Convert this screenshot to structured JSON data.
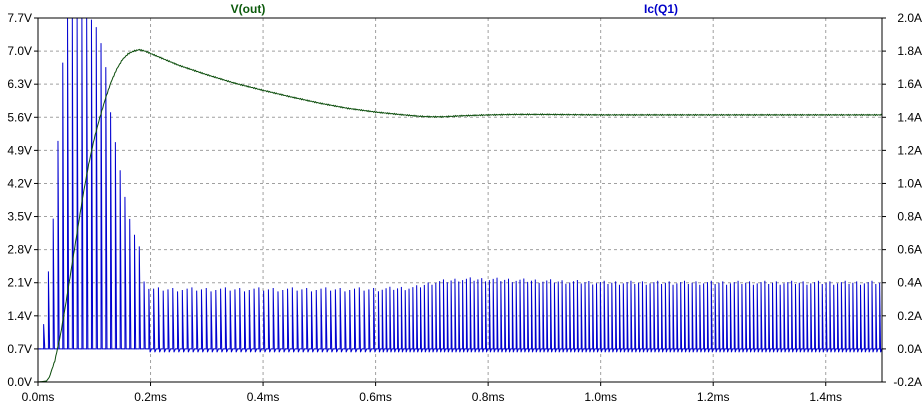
{
  "chart_data": {
    "type": "line",
    "series": [
      {
        "name": "V(out)",
        "axis": "left",
        "color": "#0b4d0b",
        "x": [
          0.0,
          0.015,
          0.02,
          0.03,
          0.04,
          0.05,
          0.06,
          0.07,
          0.08,
          0.09,
          0.1,
          0.11,
          0.12,
          0.13,
          0.14,
          0.15,
          0.16,
          0.17,
          0.18,
          0.19,
          0.2,
          0.22,
          0.25,
          0.3,
          0.35,
          0.4,
          0.45,
          0.5,
          0.55,
          0.6,
          0.65,
          0.68,
          0.7,
          0.72,
          0.75,
          0.8,
          0.85,
          0.9,
          1.0,
          1.1,
          1.2,
          1.3,
          1.4,
          1.5
        ],
        "y": [
          0.0,
          0.02,
          0.1,
          0.45,
          1.0,
          1.7,
          2.45,
          3.2,
          3.95,
          4.6,
          5.15,
          5.6,
          6.0,
          6.35,
          6.62,
          6.82,
          6.94,
          7.0,
          7.03,
          7.0,
          6.95,
          6.85,
          6.7,
          6.5,
          6.32,
          6.17,
          6.03,
          5.9,
          5.79,
          5.71,
          5.65,
          5.62,
          5.61,
          5.61,
          5.63,
          5.65,
          5.66,
          5.66,
          5.65,
          5.65,
          5.65,
          5.65,
          5.65,
          5.65
        ]
      },
      {
        "name": "Ic(Q1)",
        "axis": "right",
        "color": "#0000d0",
        "waveform": "switching pulses",
        "baseline": 0.0,
        "trough_level": -0.02,
        "start_time": 0.01,
        "peak_envelope": {
          "x": [
            0.01,
            0.03,
            0.04,
            0.05,
            0.07,
            0.08,
            0.09,
            0.1,
            0.11,
            0.12,
            0.125,
            0.13,
            0.14,
            0.15,
            0.16,
            0.175,
            0.18,
            0.19,
            0.2,
            0.3,
            0.4,
            0.5,
            0.6,
            0.67,
            0.7,
            0.75,
            0.8,
            0.9,
            1.0,
            1.1,
            1.2,
            1.3,
            1.4,
            1.5
          ],
          "y": [
            0.15,
            0.9,
            1.55,
            2.0,
            2.0,
            2.0,
            2.0,
            1.98,
            1.88,
            1.72,
            1.55,
            1.4,
            1.2,
            1.0,
            0.82,
            0.65,
            0.62,
            0.37,
            0.36,
            0.36,
            0.36,
            0.36,
            0.36,
            0.37,
            0.4,
            0.42,
            0.42,
            0.41,
            0.4,
            0.4,
            0.4,
            0.4,
            0.4,
            0.4
          ]
        },
        "pulse_period_ms_before_0_6": 0.0085,
        "pulse_period_ms_after_0_6": 0.0068
      }
    ],
    "x_axis": {
      "min": 0.0,
      "max": 1.5,
      "ticks": [
        0.0,
        0.2,
        0.4,
        0.6,
        0.8,
        1.0,
        1.2,
        1.4
      ],
      "tick_labels": [
        "0.0ms",
        "0.2ms",
        "0.4ms",
        "0.6ms",
        "0.8ms",
        "1.0ms",
        "1.2ms",
        "1.4ms"
      ]
    },
    "left_axis": {
      "min": 0.0,
      "max": 7.7,
      "ticks": [
        0.0,
        0.7,
        1.4,
        2.1,
        2.8,
        3.5,
        4.2,
        4.9,
        5.6,
        6.3,
        7.0,
        7.7
      ],
      "tick_labels": [
        "0.0V",
        "0.7V",
        "1.4V",
        "2.1V",
        "2.8V",
        "3.5V",
        "4.2V",
        "4.9V",
        "5.6V",
        "6.3V",
        "7.0V",
        "7.7V"
      ]
    },
    "right_axis": {
      "min": -0.2,
      "max": 2.0,
      "ticks": [
        -0.2,
        0.0,
        0.2,
        0.4,
        0.6,
        0.8,
        1.0,
        1.2,
        1.4,
        1.6,
        1.8,
        2.0
      ],
      "tick_labels": [
        "-0.2A",
        "0.0A",
        "0.2A",
        "0.4A",
        "0.6A",
        "0.8A",
        "1.0A",
        "1.2A",
        "1.4A",
        "1.6A",
        "1.8A",
        "2.0A"
      ]
    },
    "grid": true,
    "grid_style": "dashed",
    "legend": [
      "V(out)",
      "Ic(Q1)"
    ],
    "background": "#ffffff",
    "frame_color": "#000000",
    "grid_color": "#a0a0a0"
  }
}
